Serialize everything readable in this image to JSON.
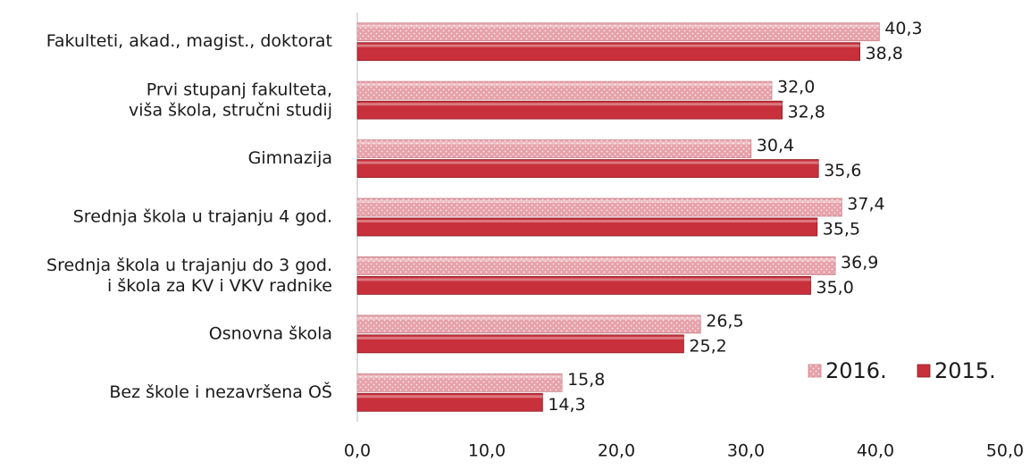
{
  "chart_data": {
    "type": "bar",
    "orientation": "horizontal",
    "categories": [
      "Fakulteti, akad., magist., doktorat",
      "Prvi stupanj fakulteta,\nviša škola, stručni studij",
      "Gimnazija",
      "Srednja škola u trajanju  4 god.",
      "Srednja škola u trajanju do 3 god.\ni škola za KV i VKV radnike",
      "Osnovna škola",
      "Bez škole i nezavršena OŠ"
    ],
    "series": [
      {
        "name": "2016.",
        "color": "#e6a1a9",
        "pattern": "dots",
        "values": [
          40.3,
          32.0,
          30.4,
          37.4,
          36.9,
          26.5,
          15.8
        ],
        "value_labels": [
          "40,3",
          "32,0",
          "30,4",
          "37,4",
          "36,9",
          "26,5",
          "15,8"
        ]
      },
      {
        "name": "2015.",
        "color": "#c8303b",
        "values": [
          38.8,
          32.8,
          35.6,
          35.5,
          35.0,
          25.2,
          14.3
        ],
        "value_labels": [
          "38,8",
          "32,8",
          "35,6",
          "35,5",
          "35,0",
          "25,2",
          "14,3"
        ]
      }
    ],
    "xlim": [
      0,
      50
    ],
    "xticks": [
      {
        "value": 0,
        "label": "0,0"
      },
      {
        "value": 10,
        "label": "10,0"
      },
      {
        "value": 20,
        "label": "20,0"
      },
      {
        "value": 30,
        "label": "30,0"
      },
      {
        "value": 40,
        "label": "40,0"
      },
      {
        "value": 50,
        "label": "50,0"
      }
    ],
    "legend": "bottom-right"
  }
}
